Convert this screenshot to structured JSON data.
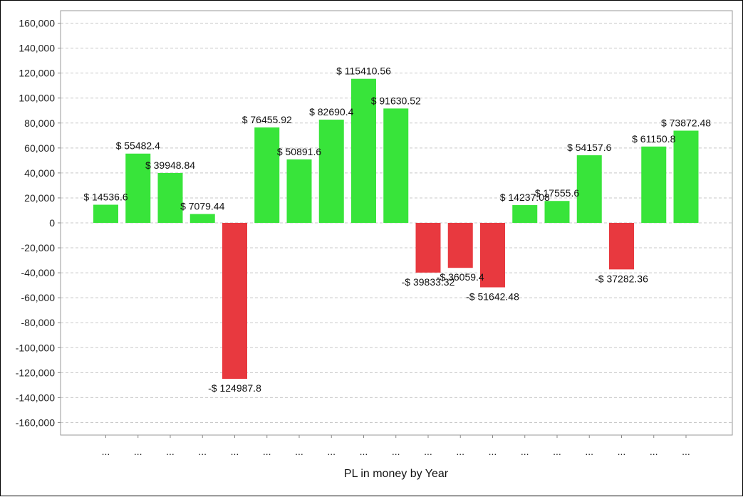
{
  "chart_data": {
    "type": "bar",
    "title": "",
    "xlabel": "PL in money by Year",
    "ylabel": "",
    "ylim": [
      -170000,
      170000
    ],
    "yticks": [
      160000,
      140000,
      120000,
      100000,
      80000,
      60000,
      40000,
      20000,
      0,
      -20000,
      -40000,
      -60000,
      -80000,
      -100000,
      -120000,
      -140000,
      -160000
    ],
    "ytick_labels": [
      "160,000",
      "140,000",
      "120,000",
      "100,000",
      "80,000",
      "60,000",
      "40,000",
      "20,000",
      "0",
      "-20,000",
      "-40,000",
      "-60,000",
      "-80,000",
      "-100,000",
      "-120,000",
      "-140,000",
      "-160,000"
    ],
    "grid": true,
    "categories": [
      "...",
      "...",
      "...",
      "...",
      "...",
      "...",
      "...",
      "...",
      "...",
      "...",
      "...",
      "...",
      "...",
      "...",
      "...",
      "...",
      "...",
      "...",
      "..."
    ],
    "values": [
      14536.6,
      55482.4,
      39948.84,
      7079.44,
      -124987.8,
      76455.92,
      50891.6,
      82690.4,
      115410.56,
      91630.52,
      -39833.32,
      -36059.4,
      -51642.48,
      14237.08,
      17555.6,
      54157.6,
      -37282.36,
      61150.8,
      73872.48
    ],
    "data_labels": [
      "$ 14536.6",
      "$ 55482.4",
      "$ 39948.84",
      "$ 7079.44",
      "-$ 124987.8",
      "$ 76455.92",
      "$ 50891.6",
      "$ 82690.4",
      "$ 115410.56",
      "$ 91630.52",
      "-$ 39833.32",
      "-$ 36059.4",
      "-$ 51642.48",
      "$ 14237.08",
      "$ 17555.6",
      "$ 54157.6",
      "-$ 37282.36",
      "$ 61150.8",
      "$ 73872.48"
    ],
    "colors": {
      "positive": "#38e43a",
      "negative": "#e8393f",
      "grid": "#c8c8c8",
      "axis": "#888888"
    }
  }
}
